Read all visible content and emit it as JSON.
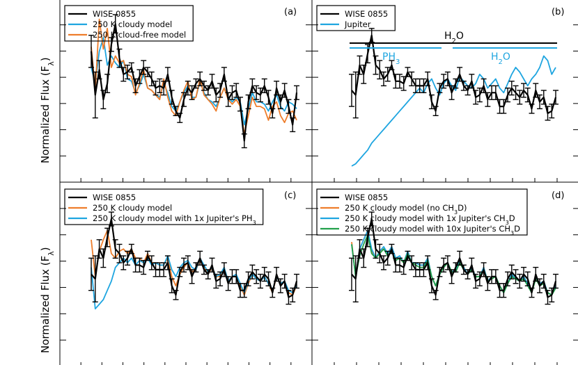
{
  "figure": {
    "ylabel_text": "Normalized Flux (F",
    "ylabel_sub": "λ",
    "ylabel_close": ")"
  },
  "colors": {
    "wise": "#000000",
    "blue": "#1ea5e0",
    "orange": "#ee7d2b",
    "green": "#21a04a"
  },
  "chart_data": [
    {
      "type": "line",
      "panel_label": "(a)",
      "legend": [
        "WISE 0855",
        "250 K cloudy model",
        "250 K cloud-free model"
      ],
      "series": [
        {
          "name": "WISE 0855",
          "color": "#000000",
          "errorbars": true,
          "values": [
            0.62,
            0.43,
            0.54,
            0.41,
            0.48,
            0.65,
            0.74,
            0.59,
            0.52,
            0.53,
            0.55,
            0.47,
            0.51,
            0.55,
            0.53,
            0.5,
            0.46,
            0.47,
            0.46,
            0.52,
            0.42,
            0.36,
            0.33,
            0.41,
            0.46,
            0.44,
            0.48,
            0.5,
            0.47,
            0.45,
            0.49,
            0.43,
            0.45,
            0.52,
            0.41,
            0.44,
            0.45,
            0.39,
            0.23,
            0.4,
            0.47,
            0.44,
            0.43,
            0.47,
            0.42,
            0.35,
            0.46,
            0.4,
            0.45,
            0.38,
            0.3,
            0.44
          ],
          "err": [
            0.07,
            0.1,
            0.04,
            0.04,
            0.04,
            0.03,
            0.04,
            0.04,
            0.03,
            0.03,
            0.02,
            0.03,
            0.03,
            0.03,
            0.02,
            0.03,
            0.03,
            0.03,
            0.03,
            0.03,
            0.03,
            0.02,
            0.02,
            0.03,
            0.03,
            0.03,
            0.02,
            0.03,
            0.02,
            0.02,
            0.03,
            0.03,
            0.03,
            0.03,
            0.03,
            0.03,
            0.03,
            0.03,
            0.03,
            0.03,
            0.03,
            0.03,
            0.03,
            0.03,
            0.03,
            0.02,
            0.03,
            0.03,
            0.03,
            0.03,
            0.03,
            0.03
          ]
        },
        {
          "name": "250 K cloudy model",
          "color": "#1ea5e0",
          "values": [
            0.55,
            0.48,
            0.62,
            0.68,
            0.56,
            0.6,
            0.57,
            0.55,
            0.58,
            0.5,
            0.49,
            0.44,
            0.47,
            0.52,
            0.46,
            0.45,
            0.43,
            0.42,
            0.48,
            0.44,
            0.38,
            0.36,
            0.4,
            0.44,
            0.47,
            0.42,
            0.42,
            0.49,
            0.44,
            0.41,
            0.4,
            0.38,
            0.42,
            0.46,
            0.42,
            0.4,
            0.42,
            0.4,
            0.3,
            0.37,
            0.44,
            0.4,
            0.4,
            0.39,
            0.36,
            0.4,
            0.43,
            0.38,
            0.36,
            0.4,
            0.39,
            0.37
          ]
        },
        {
          "name": "250 K cloud-free model",
          "color": "#ee7d2b",
          "values": [
            0.64,
            0.45,
            0.76,
            0.63,
            0.72,
            0.55,
            0.6,
            0.57,
            0.58,
            0.52,
            0.51,
            0.43,
            0.48,
            0.54,
            0.46,
            0.45,
            0.43,
            0.41,
            0.5,
            0.42,
            0.36,
            0.34,
            0.4,
            0.45,
            0.49,
            0.41,
            0.42,
            0.5,
            0.43,
            0.41,
            0.39,
            0.36,
            0.42,
            0.46,
            0.41,
            0.39,
            0.41,
            0.38,
            0.26,
            0.34,
            0.42,
            0.38,
            0.38,
            0.37,
            0.32,
            0.38,
            0.4,
            0.34,
            0.31,
            0.35,
            0.36,
            0.32
          ]
        }
      ]
    },
    {
      "type": "line",
      "panel_label": "(b)",
      "legend": [
        "WISE 0855",
        "Jupiter"
      ],
      "annotations": [
        {
          "text": "H",
          "sub": "2",
          "tail": "O",
          "color": "#000000"
        },
        {
          "text": "PH",
          "sub": "3",
          "tail": "",
          "color": "#1ea5e0"
        },
        {
          "text": "H",
          "sub": "2",
          "tail": "O",
          "color": "#1ea5e0"
        }
      ],
      "series": [
        {
          "name": "WISE 0855",
          "color": "#000000",
          "errorbars": true,
          "values": [
            0.45,
            0.43,
            0.56,
            0.52,
            0.61,
            0.69,
            0.56,
            0.54,
            0.5,
            0.52,
            0.56,
            0.49,
            0.49,
            0.48,
            0.53,
            0.5,
            0.47,
            0.47,
            0.47,
            0.5,
            0.4,
            0.36,
            0.46,
            0.49,
            0.5,
            0.44,
            0.48,
            0.52,
            0.47,
            0.45,
            0.49,
            0.42,
            0.43,
            0.47,
            0.41,
            0.44,
            0.44,
            0.38,
            0.38,
            0.43,
            0.46,
            0.44,
            0.42,
            0.45,
            0.43,
            0.37,
            0.45,
            0.4,
            0.42,
            0.35,
            0.36,
            0.42
          ],
          "err": [
            0.07,
            0.1,
            0.04,
            0.04,
            0.04,
            0.03,
            0.04,
            0.04,
            0.03,
            0.03,
            0.02,
            0.03,
            0.03,
            0.03,
            0.02,
            0.03,
            0.03,
            0.03,
            0.03,
            0.03,
            0.03,
            0.02,
            0.02,
            0.03,
            0.03,
            0.03,
            0.02,
            0.03,
            0.02,
            0.02,
            0.03,
            0.03,
            0.03,
            0.03,
            0.03,
            0.03,
            0.03,
            0.03,
            0.03,
            0.03,
            0.03,
            0.03,
            0.03,
            0.03,
            0.03,
            0.02,
            0.03,
            0.03,
            0.03,
            0.03,
            0.03,
            0.03
          ]
        },
        {
          "name": "Jupiter",
          "color": "#1ea5e0",
          "values": [
            0.12,
            0.13,
            0.15,
            0.17,
            0.19,
            0.22,
            0.24,
            0.26,
            0.28,
            0.3,
            0.32,
            0.34,
            0.36,
            0.38,
            0.4,
            0.42,
            0.44,
            0.46,
            0.44,
            0.48,
            0.5,
            0.46,
            0.43,
            0.48,
            0.5,
            0.47,
            0.45,
            0.51,
            0.49,
            0.47,
            0.46,
            0.48,
            0.52,
            0.5,
            0.46,
            0.48,
            0.5,
            0.46,
            0.44,
            0.48,
            0.52,
            0.55,
            0.53,
            0.5,
            0.47,
            0.5,
            0.52,
            0.55,
            0.6,
            0.58,
            0.52,
            0.55
          ]
        }
      ]
    },
    {
      "type": "line",
      "panel_label": "(c)",
      "legend": [
        "WISE 0855",
        "250 K cloudy model",
        "250 K cloudy model with 1x Jupiter's PH"
      ],
      "legend_sub": {
        "index": 2,
        "sub": "3"
      },
      "series": [
        {
          "name": "WISE 0855",
          "color": "#000000",
          "errorbars": true,
          "values": [
            0.45,
            0.43,
            0.56,
            0.52,
            0.61,
            0.69,
            0.56,
            0.54,
            0.5,
            0.52,
            0.56,
            0.49,
            0.49,
            0.48,
            0.53,
            0.5,
            0.47,
            0.47,
            0.47,
            0.5,
            0.4,
            0.36,
            0.46,
            0.49,
            0.5,
            0.44,
            0.48,
            0.52,
            0.47,
            0.45,
            0.49,
            0.42,
            0.43,
            0.47,
            0.41,
            0.44,
            0.44,
            0.38,
            0.38,
            0.43,
            0.46,
            0.44,
            0.42,
            0.45,
            0.43,
            0.37,
            0.45,
            0.4,
            0.42,
            0.35,
            0.36,
            0.42
          ],
          "err": [
            0.07,
            0.1,
            0.04,
            0.04,
            0.04,
            0.03,
            0.04,
            0.04,
            0.03,
            0.03,
            0.02,
            0.03,
            0.03,
            0.03,
            0.02,
            0.03,
            0.03,
            0.03,
            0.03,
            0.03,
            0.03,
            0.02,
            0.02,
            0.03,
            0.03,
            0.03,
            0.02,
            0.03,
            0.02,
            0.02,
            0.03,
            0.03,
            0.03,
            0.03,
            0.03,
            0.03,
            0.03,
            0.03,
            0.03,
            0.03,
            0.03,
            0.03,
            0.03,
            0.03,
            0.03,
            0.02,
            0.03,
            0.03,
            0.03,
            0.03,
            0.03,
            0.03
          ]
        },
        {
          "name": "250 K cloudy model",
          "color": "#ee7d2b",
          "values": [
            0.6,
            0.44,
            0.55,
            0.6,
            0.64,
            0.54,
            0.52,
            0.55,
            0.56,
            0.54,
            0.56,
            0.52,
            0.52,
            0.5,
            0.54,
            0.5,
            0.5,
            0.49,
            0.49,
            0.52,
            0.44,
            0.4,
            0.45,
            0.48,
            0.5,
            0.46,
            0.47,
            0.51,
            0.48,
            0.45,
            0.48,
            0.44,
            0.44,
            0.48,
            0.42,
            0.44,
            0.44,
            0.4,
            0.36,
            0.41,
            0.45,
            0.43,
            0.42,
            0.44,
            0.41,
            0.37,
            0.44,
            0.41,
            0.42,
            0.37,
            0.36,
            0.4
          ]
        },
        {
          "name": "250 K cloudy model with 1x Jupiter's PH3",
          "color": "#1ea5e0",
          "values": [
            0.48,
            0.3,
            0.32,
            0.34,
            0.38,
            0.42,
            0.48,
            0.5,
            0.52,
            0.5,
            0.52,
            0.49,
            0.51,
            0.5,
            0.52,
            0.49,
            0.5,
            0.49,
            0.49,
            0.53,
            0.47,
            0.44,
            0.48,
            0.5,
            0.51,
            0.48,
            0.47,
            0.52,
            0.49,
            0.46,
            0.48,
            0.44,
            0.45,
            0.48,
            0.42,
            0.44,
            0.45,
            0.41,
            0.37,
            0.42,
            0.45,
            0.43,
            0.42,
            0.44,
            0.41,
            0.38,
            0.44,
            0.41,
            0.42,
            0.38,
            0.37,
            0.4
          ]
        }
      ]
    },
    {
      "type": "line",
      "panel_label": "(d)",
      "legend": [
        "WISE 0855",
        "250 K cloudy model (no CH",
        "250 K cloudy model with 1x Jupiter's CH",
        "250 K cloudy model with 10x Jupiter's CH"
      ],
      "legend_tail": [
        "",
        "D)",
        "D",
        "D"
      ],
      "legend_sub_char": "3",
      "series": [
        {
          "name": "WISE 0855",
          "color": "#000000",
          "errorbars": true,
          "values": [
            0.45,
            0.43,
            0.56,
            0.52,
            0.61,
            0.69,
            0.56,
            0.54,
            0.5,
            0.52,
            0.56,
            0.49,
            0.49,
            0.48,
            0.53,
            0.5,
            0.47,
            0.47,
            0.47,
            0.5,
            0.4,
            0.36,
            0.46,
            0.49,
            0.5,
            0.44,
            0.48,
            0.52,
            0.47,
            0.45,
            0.49,
            0.42,
            0.43,
            0.47,
            0.41,
            0.44,
            0.44,
            0.38,
            0.38,
            0.43,
            0.46,
            0.44,
            0.42,
            0.45,
            0.43,
            0.37,
            0.45,
            0.4,
            0.42,
            0.35,
            0.36,
            0.42
          ],
          "err": [
            0.07,
            0.1,
            0.04,
            0.04,
            0.04,
            0.03,
            0.04,
            0.04,
            0.03,
            0.03,
            0.02,
            0.03,
            0.03,
            0.03,
            0.02,
            0.03,
            0.03,
            0.03,
            0.03,
            0.03,
            0.03,
            0.02,
            0.02,
            0.03,
            0.03,
            0.03,
            0.02,
            0.03,
            0.02,
            0.02,
            0.03,
            0.03,
            0.03,
            0.03,
            0.03,
            0.03,
            0.03,
            0.03,
            0.03,
            0.03,
            0.03,
            0.03,
            0.03,
            0.03,
            0.03,
            0.02,
            0.03,
            0.03,
            0.03,
            0.03,
            0.03,
            0.03
          ]
        },
        {
          "name": "250 K cloudy model (no CH3D)",
          "color": "#ee7d2b",
          "values": [
            0.59,
            0.44,
            0.56,
            0.6,
            0.64,
            0.55,
            0.52,
            0.55,
            0.56,
            0.54,
            0.57,
            0.52,
            0.52,
            0.5,
            0.55,
            0.5,
            0.5,
            0.49,
            0.49,
            0.52,
            0.44,
            0.4,
            0.45,
            0.48,
            0.5,
            0.46,
            0.47,
            0.51,
            0.48,
            0.45,
            0.48,
            0.44,
            0.44,
            0.48,
            0.42,
            0.44,
            0.44,
            0.4,
            0.37,
            0.41,
            0.45,
            0.43,
            0.42,
            0.44,
            0.41,
            0.37,
            0.44,
            0.41,
            0.42,
            0.37,
            0.36,
            0.4
          ]
        },
        {
          "name": "250 K cloudy model with 1x Jupiter's CH3D",
          "color": "#1ea5e0",
          "values": [
            0.58,
            0.44,
            0.56,
            0.6,
            0.64,
            0.56,
            0.52,
            0.55,
            0.57,
            0.54,
            0.57,
            0.52,
            0.53,
            0.5,
            0.55,
            0.5,
            0.5,
            0.49,
            0.49,
            0.52,
            0.44,
            0.4,
            0.45,
            0.48,
            0.5,
            0.46,
            0.47,
            0.51,
            0.48,
            0.45,
            0.48,
            0.44,
            0.44,
            0.48,
            0.42,
            0.44,
            0.44,
            0.4,
            0.37,
            0.41,
            0.45,
            0.43,
            0.42,
            0.44,
            0.41,
            0.37,
            0.44,
            0.41,
            0.42,
            0.37,
            0.36,
            0.4
          ]
        },
        {
          "name": "250 K cloudy model with 10x Jupiter's CH3D",
          "color": "#21a04a",
          "values": [
            0.58,
            0.44,
            0.53,
            0.58,
            0.62,
            0.54,
            0.52,
            0.54,
            0.56,
            0.53,
            0.55,
            0.51,
            0.52,
            0.5,
            0.54,
            0.5,
            0.49,
            0.48,
            0.48,
            0.51,
            0.44,
            0.4,
            0.45,
            0.48,
            0.5,
            0.46,
            0.46,
            0.5,
            0.47,
            0.45,
            0.47,
            0.44,
            0.44,
            0.47,
            0.42,
            0.43,
            0.44,
            0.4,
            0.37,
            0.41,
            0.44,
            0.43,
            0.42,
            0.43,
            0.4,
            0.37,
            0.43,
            0.4,
            0.41,
            0.37,
            0.36,
            0.39
          ]
        }
      ]
    }
  ]
}
